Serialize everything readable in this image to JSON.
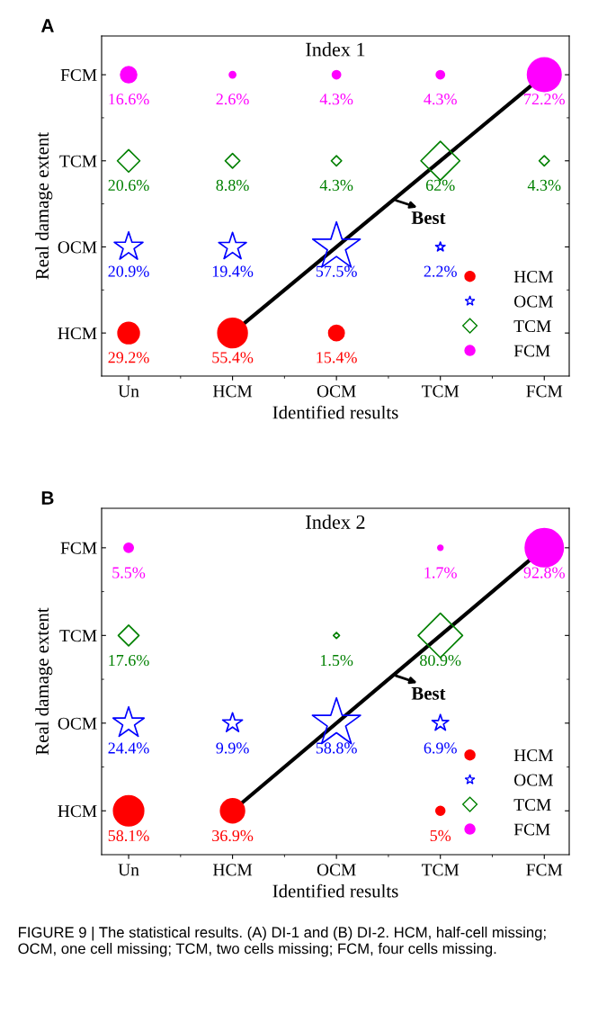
{
  "chart_data": [
    {
      "type": "other",
      "title": "Index 1",
      "xlabel": "Identified results",
      "ylabel": "Real damage extent",
      "annotations": [
        "A",
        "Best"
      ],
      "legend": "bottom right",
      "categories": [
        "Un",
        "HCM",
        "OCM",
        "TCM",
        "FCM"
      ],
      "y_categories": [
        "FCM",
        "TCM",
        "OCM",
        "HCM"
      ],
      "series": [
        {
          "name": "HCM",
          "color": "#ff0000",
          "marker": "circle",
          "values": [
            29.2,
            55.4,
            15.4,
            null,
            null
          ],
          "value_labels": [
            "29.2%",
            "55.4%",
            "15.4%",
            null,
            null
          ]
        },
        {
          "name": "OCM",
          "color": "#0000ff",
          "marker": "star",
          "values": [
            20.9,
            19.4,
            57.5,
            2.2,
            null
          ],
          "value_labels": [
            "20.9%",
            "19.4%",
            "57.5%",
            "2.2%",
            null
          ]
        },
        {
          "name": "TCM",
          "color": "#008000",
          "marker": "diamond",
          "values": [
            20.6,
            8.8,
            4.3,
            62,
            4.3
          ],
          "value_labels": [
            "20.6%",
            "8.8%",
            "4.3%",
            "62%",
            "4.3%"
          ]
        },
        {
          "name": "FCM",
          "color": "#ff00ff",
          "marker": "circle",
          "values": [
            16.6,
            2.6,
            4.3,
            4.3,
            72.2
          ],
          "value_labels": [
            "16.6%",
            "2.6%",
            "4.3%",
            "4.3%",
            "72.2%"
          ]
        }
      ]
    },
    {
      "type": "other",
      "title": "Index 2",
      "xlabel": "Identified results",
      "ylabel": "Real damage extent",
      "annotations": [
        "B",
        "Best",
        "FIGURE 9 | The statistical results. (A) DI-1 and (B) DI-2. HCM, half-cell missing; OCM, one cell missing; TCM, two cells missing; FCM, four cells missing."
      ],
      "legend": "bottom right",
      "categories": [
        "Un",
        "HCM",
        "OCM",
        "TCM",
        "FCM"
      ],
      "y_categories": [
        "FCM",
        "TCM",
        "OCM",
        "HCM"
      ],
      "series": [
        {
          "name": "HCM",
          "color": "#ff0000",
          "marker": "circle",
          "values": [
            58.1,
            36.9,
            null,
            5,
            null
          ],
          "value_labels": [
            "58.1%",
            "36.9%",
            null,
            "5%",
            null
          ]
        },
        {
          "name": "OCM",
          "color": "#0000ff",
          "marker": "star",
          "values": [
            24.4,
            9.9,
            58.8,
            6.9,
            null
          ],
          "value_labels": [
            "24.4%",
            "9.9%",
            "58.8%",
            "6.9%",
            null
          ]
        },
        {
          "name": "TCM",
          "color": "#008000",
          "marker": "diamond",
          "values": [
            17.6,
            null,
            1.5,
            80.9,
            null
          ],
          "value_labels": [
            "17.6%",
            null,
            "1.5%",
            "80.9%",
            null
          ]
        },
        {
          "name": "FCM",
          "color": "#ff00ff",
          "marker": "circle",
          "values": [
            5.5,
            null,
            null,
            1.7,
            92.8
          ],
          "value_labels": [
            "5.5%",
            null,
            null,
            "1.7%",
            "92.8%"
          ]
        }
      ]
    }
  ]
}
